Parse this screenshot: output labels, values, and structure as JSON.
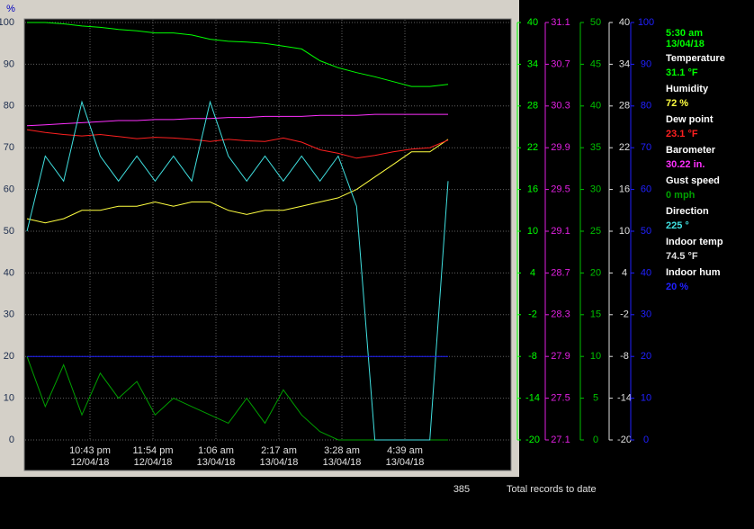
{
  "chart_data": {
    "type": "line",
    "x_labels": [
      {
        "time": "10:43 pm",
        "date": "12/04/18"
      },
      {
        "time": "11:54 pm",
        "date": "12/04/18"
      },
      {
        "time": "1:06 am",
        "date": "13/04/18"
      },
      {
        "time": "2:17 am",
        "date": "13/04/18"
      },
      {
        "time": "3:28 am",
        "date": "13/04/18"
      },
      {
        "time": "4:39 am",
        "date": "13/04/18"
      }
    ],
    "grid": true,
    "axes": [
      {
        "id": "pct",
        "label": "%",
        "color": "#0000c0",
        "ylim": [
          0,
          100
        ],
        "yticks": [
          0,
          10,
          20,
          30,
          40,
          50,
          60,
          70,
          80,
          90,
          100
        ]
      },
      {
        "id": "temp",
        "color": "#00ff00",
        "ylim": [
          -20,
          40
        ],
        "yticks": [
          -20,
          -14,
          -8,
          -2,
          4,
          10,
          16,
          22,
          28,
          34,
          40
        ]
      },
      {
        "id": "baro",
        "color": "#e020e0",
        "ylim": [
          27.1,
          31.1
        ],
        "yticks": [
          27.1,
          27.5,
          27.9,
          28.3,
          28.7,
          29.1,
          29.5,
          29.9,
          30.3,
          30.7,
          31.1
        ]
      },
      {
        "id": "wind",
        "color": "#00c000",
        "ylim": [
          0,
          50
        ],
        "yticks": [
          0,
          5,
          10,
          15,
          20,
          25,
          30,
          35,
          40,
          45,
          50
        ]
      },
      {
        "id": "indoor",
        "color": "#e0e0e0",
        "ylim": [
          -20,
          40
        ],
        "yticks": [
          -20,
          -14,
          -8,
          -2,
          4,
          10,
          16,
          22,
          28,
          34,
          40
        ]
      },
      {
        "id": "hum",
        "color": "#2020ff",
        "ylim": [
          0,
          100
        ],
        "yticks": [
          0,
          10,
          20,
          30,
          40,
          50,
          60,
          70,
          80,
          90,
          100
        ]
      }
    ],
    "series": [
      {
        "name": "Temperature",
        "color": "#00ff00",
        "axis": "temp",
        "values": [
          40,
          40,
          39.8,
          39.5,
          39.3,
          39,
          38.8,
          38.5,
          38.5,
          38.2,
          37.6,
          37.3,
          37.2,
          37,
          36.6,
          36.2,
          34.5,
          33.5,
          32.8,
          32.2,
          31.5,
          30.8,
          30.8,
          31.1
        ]
      },
      {
        "name": "Humidity",
        "color": "#ffff40",
        "axis": "pct",
        "values": [
          53,
          52,
          53,
          55,
          55,
          56,
          56,
          57,
          56,
          57,
          57,
          55,
          54,
          55,
          55,
          56,
          57,
          58,
          60,
          63,
          66,
          69,
          69,
          72
        ]
      },
      {
        "name": "Dew point",
        "color": "#ff2020",
        "axis": "temp",
        "values": [
          24.6,
          24.2,
          23.9,
          23.7,
          23.9,
          23.6,
          23.3,
          23.5,
          23.4,
          23.2,
          22.9,
          23.2,
          23,
          22.9,
          23.4,
          22.8,
          21.7,
          21.2,
          20.5,
          20.9,
          21.4,
          21.8,
          22,
          23.1
        ]
      },
      {
        "name": "Barometer",
        "color": "#ff30ff",
        "axis": "baro",
        "values": [
          30.11,
          30.12,
          30.13,
          30.14,
          30.15,
          30.16,
          30.16,
          30.17,
          30.17,
          30.18,
          30.18,
          30.19,
          30.19,
          30.2,
          30.2,
          30.2,
          30.21,
          30.21,
          30.21,
          30.22,
          30.22,
          30.22,
          30.22,
          30.22
        ]
      },
      {
        "name": "Gust speed",
        "color": "#00a000",
        "axis": "wind",
        "values": [
          10,
          4,
          9,
          3,
          8,
          5,
          7,
          3,
          5,
          4,
          3,
          2,
          5,
          2,
          6,
          3,
          1,
          0,
          0,
          0,
          0,
          0,
          0,
          0
        ]
      },
      {
        "name": "Direction",
        "color": "#40e0e0",
        "axis": "pct",
        "values": [
          50,
          68,
          62,
          81,
          68,
          62,
          68,
          62,
          68,
          62,
          81,
          68,
          62,
          68,
          62,
          68,
          62,
          68,
          56,
          0,
          0,
          0,
          0,
          62
        ]
      },
      {
        "name": "Indoor hum",
        "color": "#2020ff",
        "axis": "hum",
        "values": [
          20,
          20,
          20,
          20,
          20,
          20,
          20,
          20,
          20,
          20,
          20,
          20,
          20,
          20,
          20,
          20,
          20,
          20,
          20,
          20,
          20,
          20,
          20,
          20
        ]
      }
    ]
  },
  "readings": {
    "time": "5:30 am",
    "date": "13/04/18",
    "items": [
      {
        "label": "Temperature",
        "value": "31.1 °F",
        "color": "#00ff00"
      },
      {
        "label": "Humidity",
        "value": "72 %",
        "color": "#ffff40"
      },
      {
        "label": "Dew point",
        "value": "23.1 °F",
        "color": "#ff2020"
      },
      {
        "label": "Barometer",
        "value": "30.22 in.",
        "color": "#ff30ff"
      },
      {
        "label": "Gust speed",
        "value": " 0 mph",
        "color": "#00a000"
      },
      {
        "label": "Direction",
        "value": "225 °",
        "color": "#40e0e0"
      },
      {
        "label": "Indoor temp",
        "value": "74.5 °F",
        "color": "#e0e0e0"
      },
      {
        "label": "Indoor hum",
        "value": "20 %",
        "color": "#2020ff"
      }
    ]
  },
  "footer": {
    "count": "385",
    "text": "Total records to date"
  }
}
